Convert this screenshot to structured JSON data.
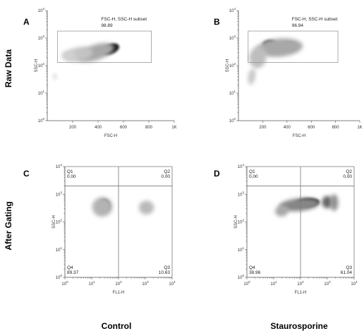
{
  "row_labels": [
    "Raw Data",
    "After Gating"
  ],
  "column_labels": [
    "Control",
    "Staurosporine"
  ],
  "colors": {
    "density_dark": "#111111",
    "density_mid": "#777777",
    "gate": "#999999"
  },
  "chart_data": [
    {
      "type": "scatter",
      "panel": "A",
      "xlabel": "FSC-H",
      "ylabel": "SSC-H",
      "x_scale": "linear",
      "y_scale": "log",
      "xlim": [
        0,
        1000
      ],
      "ylim": [
        1,
        10000
      ],
      "x_ticks": [
        {
          "v": 200,
          "label": "200"
        },
        {
          "v": 400,
          "label": "400"
        },
        {
          "v": 600,
          "label": "600"
        },
        {
          "v": 800,
          "label": "800"
        },
        {
          "v": 1000,
          "label": "1K"
        }
      ],
      "gate": {
        "label": "FSC-H, SSC-H subset",
        "value": "98.89",
        "x": [
          80,
          820
        ],
        "y": [
          130,
          1800
        ]
      },
      "density": [
        {
          "x": 500,
          "y": 400,
          "sx": 70,
          "sy": 0.18,
          "rot": -22,
          "level": 0.92
        },
        {
          "x": 380,
          "y": 300,
          "sx": 150,
          "sy": 0.28,
          "rot": -18,
          "level": 0.3
        },
        {
          "x": 250,
          "y": 260,
          "sx": 110,
          "sy": 0.25,
          "rot": -10,
          "level": 0.18
        },
        {
          "x": 170,
          "y": 230,
          "sx": 60,
          "sy": 0.18,
          "rot": 0,
          "level": 0.12
        },
        {
          "x": 60,
          "y": 40,
          "sx": 14,
          "sy": 0.1,
          "rot": 0,
          "level": 0.12
        }
      ]
    },
    {
      "type": "scatter",
      "panel": "B",
      "xlabel": "FSC-H",
      "ylabel": "SSC-H",
      "x_scale": "linear",
      "y_scale": "log",
      "xlim": [
        0,
        1000
      ],
      "ylim": [
        1,
        10000
      ],
      "x_ticks": [
        {
          "v": 200,
          "label": "200"
        },
        {
          "v": 400,
          "label": "400"
        },
        {
          "v": 600,
          "label": "600"
        },
        {
          "v": 800,
          "label": "800"
        },
        {
          "v": 1000,
          "label": "1K"
        }
      ],
      "gate": {
        "label": "FSC-H, SSC-H subset",
        "value": "96.94",
        "x": [
          80,
          820
        ],
        "y": [
          130,
          1800
        ]
      },
      "density": [
        {
          "x": 410,
          "y": 500,
          "sx": 70,
          "sy": 0.16,
          "rot": 0,
          "level": 0.92
        },
        {
          "x": 260,
          "y": 600,
          "sx": 60,
          "sy": 0.16,
          "rot": 0,
          "level": 0.7
        },
        {
          "x": 340,
          "y": 450,
          "sx": 190,
          "sy": 0.33,
          "rot": -5,
          "level": 0.3
        },
        {
          "x": 160,
          "y": 200,
          "sx": 70,
          "sy": 0.4,
          "rot": 10,
          "level": 0.2
        },
        {
          "x": 110,
          "y": 40,
          "sx": 30,
          "sy": 0.3,
          "rot": 10,
          "level": 0.15
        }
      ]
    },
    {
      "type": "scatter",
      "panel": "C",
      "xlabel": "FL1-H",
      "ylabel": "SSC-H",
      "x_scale": "log",
      "y_scale": "log",
      "xlim": [
        1,
        10000
      ],
      "ylim": [
        1,
        10000
      ],
      "quadrant_split": {
        "x": 100,
        "y": 2000
      },
      "quadrants": [
        {
          "name": "Q1",
          "value": "0.00",
          "pos": "top-left"
        },
        {
          "name": "Q2",
          "value": "0.00",
          "pos": "top-right"
        },
        {
          "name": "Q3",
          "value": "10.63",
          "pos": "bottom-right"
        },
        {
          "name": "Q4",
          "value": "89.37",
          "pos": "bottom-left"
        }
      ],
      "density": [
        {
          "x": 30,
          "y": 400,
          "sx": 0.2,
          "sy": 0.22,
          "rot": -15,
          "level": 0.95
        },
        {
          "x": 25,
          "y": 350,
          "sx": 0.38,
          "sy": 0.35,
          "rot": -15,
          "level": 0.25
        },
        {
          "x": 1100,
          "y": 330,
          "sx": 0.28,
          "sy": 0.25,
          "rot": 0,
          "level": 0.22
        }
      ]
    },
    {
      "type": "scatter",
      "panel": "D",
      "xlabel": "FL1-H",
      "ylabel": "SSC-H",
      "x_scale": "log",
      "y_scale": "log",
      "xlim": [
        1,
        10000
      ],
      "ylim": [
        1,
        10000
      ],
      "quadrant_split": {
        "x": 100,
        "y": 2000
      },
      "quadrants": [
        {
          "name": "Q1",
          "value": "0.00",
          "pos": "top-left"
        },
        {
          "name": "Q2",
          "value": "0.00",
          "pos": "top-right"
        },
        {
          "name": "Q3",
          "value": "61.04",
          "pos": "bottom-right"
        },
        {
          "name": "Q4",
          "value": "38.96",
          "pos": "bottom-left"
        }
      ],
      "density": [
        {
          "x": 180,
          "y": 500,
          "sx": 0.45,
          "sy": 0.16,
          "rot": -4,
          "level": 0.95
        },
        {
          "x": 90,
          "y": 420,
          "sx": 0.75,
          "sy": 0.23,
          "rot": -5,
          "level": 0.45
        },
        {
          "x": 1000,
          "y": 520,
          "sx": 0.2,
          "sy": 0.22,
          "rot": 0,
          "level": 0.6
        },
        {
          "x": 20,
          "y": 250,
          "sx": 0.25,
          "sy": 0.2,
          "rot": -10,
          "level": 0.3
        },
        {
          "x": 1800,
          "y": 500,
          "sx": 0.15,
          "sy": 0.3,
          "rot": 0,
          "level": 0.4
        }
      ]
    }
  ]
}
